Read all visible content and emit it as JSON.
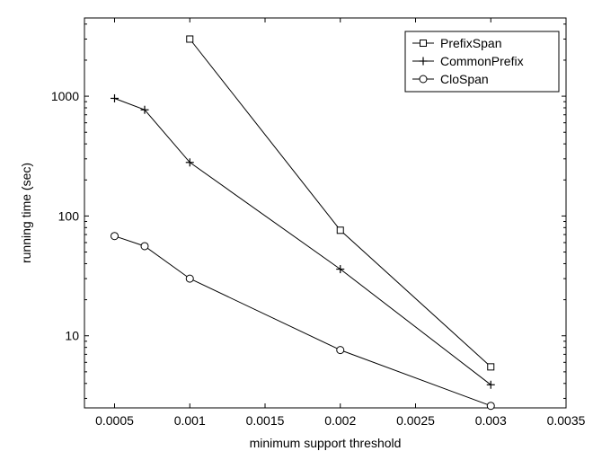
{
  "chart_data": {
    "type": "line",
    "xlabel": "minimum support threshold",
    "ylabel": "running time (sec)",
    "xlim": [
      0.0003,
      0.0035
    ],
    "ylim": [
      2.5,
      4500
    ],
    "yscale": "log",
    "grid": false,
    "legend_position": "top-right",
    "xticks": [
      {
        "value": 0.0005,
        "label": "0.0005"
      },
      {
        "value": 0.001,
        "label": "0.001"
      },
      {
        "value": 0.0015,
        "label": "0.0015"
      },
      {
        "value": 0.002,
        "label": "0.002"
      },
      {
        "value": 0.0025,
        "label": "0.0025"
      },
      {
        "value": 0.003,
        "label": "0.003"
      },
      {
        "value": 0.0035,
        "label": "0.0035"
      }
    ],
    "yticks": [
      {
        "value": 10,
        "label": "10"
      },
      {
        "value": 100,
        "label": "100"
      },
      {
        "value": 1000,
        "label": "1000"
      }
    ],
    "series": [
      {
        "name": "PrefixSpan",
        "marker": "square",
        "points": [
          [
            0.001,
            3000
          ],
          [
            0.002,
            76
          ],
          [
            0.003,
            5.5
          ]
        ]
      },
      {
        "name": "CommonPrefix",
        "marker": "plus",
        "points": [
          [
            0.0005,
            960
          ],
          [
            0.0007,
            770
          ],
          [
            0.001,
            280
          ],
          [
            0.002,
            36
          ],
          [
            0.003,
            3.9
          ]
        ]
      },
      {
        "name": "CloSpan",
        "marker": "circle",
        "points": [
          [
            0.0005,
            68
          ],
          [
            0.0007,
            56
          ],
          [
            0.001,
            30
          ],
          [
            0.002,
            7.6
          ],
          [
            0.003,
            2.6
          ]
        ]
      }
    ]
  }
}
